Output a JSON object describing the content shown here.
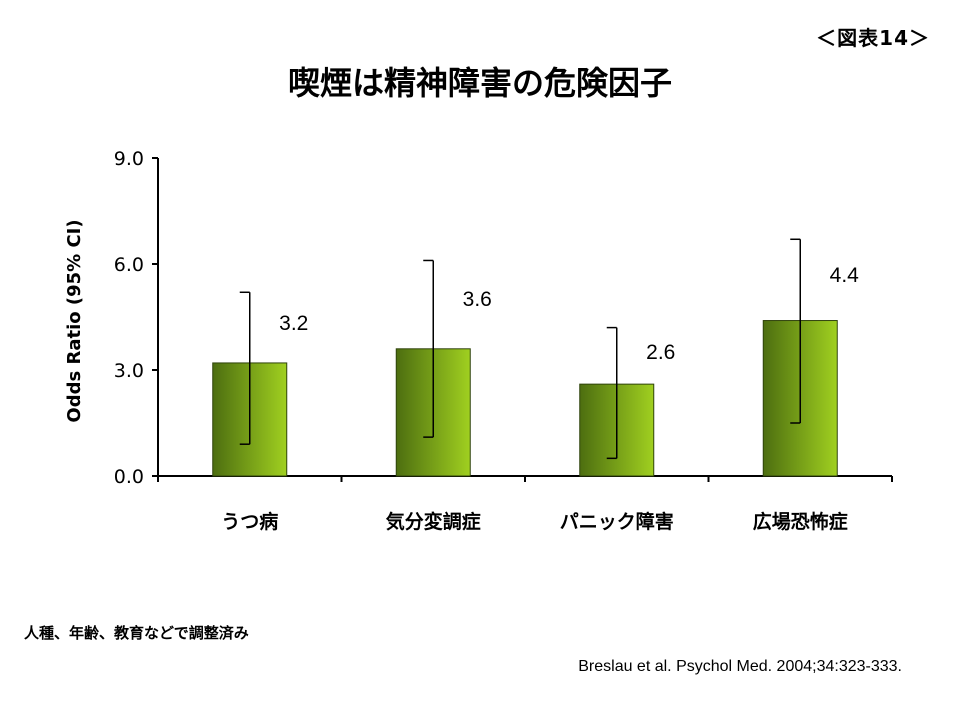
{
  "figure_label": "＜図表14＞",
  "title": "喫煙は精神障害の危険因子",
  "note": "人種、年齢、教育などで調整済み",
  "source": "Breslau et al. Psychol Med. 2004;34:323-333.",
  "colors": {
    "bar_dark": "#4d6e10",
    "bar_light": "#a0d020",
    "axis": "#000000"
  },
  "chart_data": {
    "type": "bar",
    "title": "喫煙は精神障害の危険因子",
    "ylabel": "Odds Ratio (95% CI)",
    "xlabel": "",
    "categories": [
      "うつ病",
      "気分変調症",
      "パニック障害",
      "広場恐怖症"
    ],
    "values": [
      3.2,
      3.6,
      2.6,
      4.4
    ],
    "value_labels": [
      "3.2",
      "3.6",
      "2.6",
      "4.4"
    ],
    "ci_low": [
      0.9,
      1.1,
      0.5,
      1.5
    ],
    "ci_high": [
      5.2,
      6.1,
      4.2,
      6.7
    ],
    "ylim": [
      0,
      9
    ],
    "yticks": [
      0,
      3,
      6,
      9
    ],
    "ytick_labels": [
      "0.0",
      "3.0",
      "6.0",
      "9.0"
    ],
    "grid": false,
    "legend": "none"
  }
}
